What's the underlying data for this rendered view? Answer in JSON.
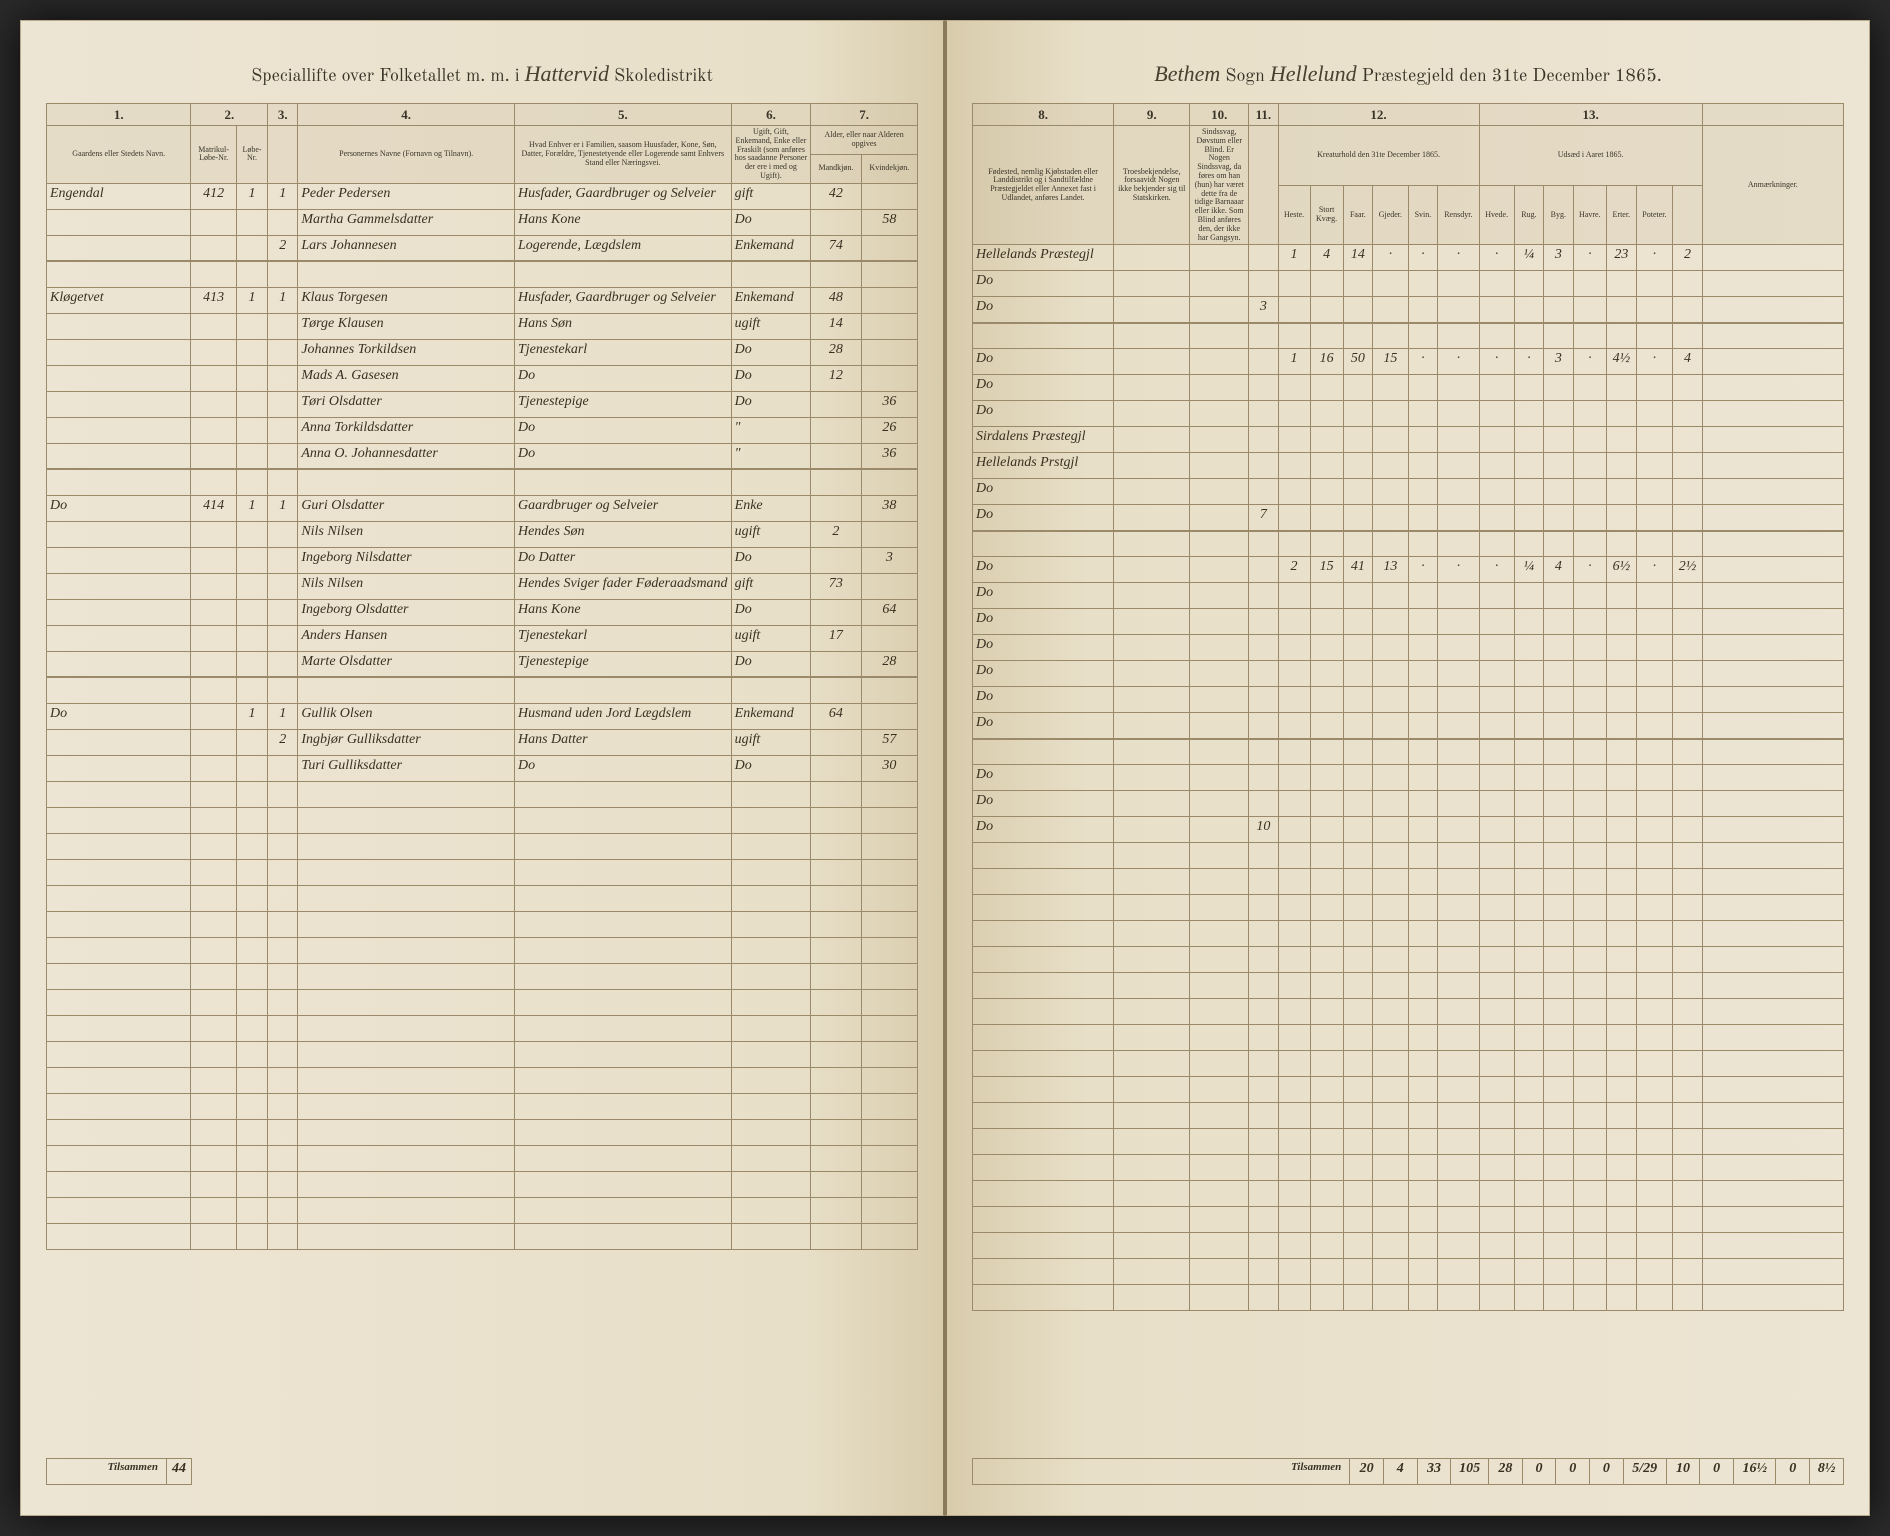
{
  "header": {
    "left_printed_prefix": "Speciallifte over Folketallet m. m. i",
    "left_handwritten": "Hattervid",
    "left_printed_suffix": "Skoledistrikt",
    "right_handwritten_sogn": "Bethem",
    "right_printed_sogn": "Sogn",
    "right_handwritten_gjeld": "Hellelund",
    "right_printed_suffix": "Præstegjeld den 31te December 1865."
  },
  "columns_left": {
    "c1": "1.",
    "c2": "2.",
    "c3": "3.",
    "c4": "4.",
    "c5": "5.",
    "c6": "6.",
    "c7": "7.",
    "h1": "Gaardens eller Stedets Navn.",
    "h2a": "Matrikul-Løbe-Nr.",
    "h2b": "Løbe-Nr.",
    "h3": "",
    "h4": "Personernes Navne (Fornavn og Tilnavn).",
    "h5": "Hvad Enhver er i Familien, saasom Huusfader, Kone, Søn, Datter, Forældre, Tjenestetyende eller Logerende samt Enhvers Stand eller Næringsvei.",
    "h6": "Ugift, Gift, Enkemand, Enke eller Fraskilt (som anføres hos saadanne Personer der ere i med og Ugift).",
    "h7": "Alder, eller naar Alderen opgives",
    "h7a": "Mandkjøn.",
    "h7b": "Kvindekjøn."
  },
  "columns_right": {
    "c8": "8.",
    "c9": "9.",
    "c10": "10.",
    "c11": "11.",
    "c12": "12.",
    "c13": "13.",
    "h8": "Fødested, nemlig Kjøbstaden eller Landdistrikt og i Sandtilfældne Præstegjeldet eller Annexet fast i Udlandet, anføres Landet.",
    "h9": "Troesbekjendelse, forsaavidt Nogen ikke bekjender sig til Statskirken.",
    "h10": "Sindssvag, Døvstum eller Blind. Er Nogen Sindssvag, da føres om han (hun) har været dette fra de tidige Barnaaar eller ikke. Som Blind anføres den, der ikke har Gangsyn.",
    "h11": "",
    "h12": "Kreaturhold den 31te December 1865.",
    "h12a": "Heste.",
    "h12b": "Stort Kvæg.",
    "h12c": "Faar.",
    "h12d": "Gjeder.",
    "h12e": "Svin.",
    "h12f": "Rensdyr.",
    "h13": "Udsæd i Aaret 1865.",
    "h13a": "Hvede.",
    "h13b": "Rug.",
    "h13c": "Byg.",
    "h13d": "Havre.",
    "h13e": "Erter.",
    "h13f": "Poteter.",
    "h14": "Anmærkninger."
  },
  "rows": [
    {
      "place": "Engendal",
      "matr": "412",
      "hus": "1",
      "pers": "1",
      "name": "Peder Pedersen",
      "role": "Husfader, Gaardbruger og Selveier",
      "status": "gift",
      "age_m": "42",
      "age_f": "",
      "birthplace": "Hellelands Præstegjl",
      "c11": "",
      "k": [
        "1",
        "4",
        "14",
        "·",
        "·",
        "·"
      ],
      "u": [
        "·",
        "¼",
        "3",
        "·",
        "23",
        "·",
        "2"
      ]
    },
    {
      "place": "",
      "matr": "",
      "hus": "",
      "pers": "",
      "name": "Martha Gammelsdatter",
      "role": "Hans Kone",
      "status": "Do",
      "age_m": "",
      "age_f": "58",
      "birthplace": "Do",
      "c11": "",
      "k": [
        "",
        "",
        "",
        "",
        "",
        ""
      ],
      "u": [
        "",
        "",
        "",
        "",
        "",
        "",
        ""
      ]
    },
    {
      "place": "",
      "matr": "",
      "hus": "",
      "pers": "2",
      "name": "Lars Johannesen",
      "role": "Logerende, Lægdslem",
      "status": "Enkemand",
      "age_m": "74",
      "age_f": "",
      "birthplace": "Do",
      "c11": "3",
      "k": [
        "",
        "",
        "",
        "",
        "",
        ""
      ],
      "u": [
        "",
        "",
        "",
        "",
        "",
        "",
        ""
      ]
    },
    {
      "gap": true
    },
    {
      "place": "Kløgetvet",
      "matr": "413",
      "hus": "1",
      "pers": "1",
      "name": "Klaus Torgesen",
      "role": "Husfader, Gaardbruger og Selveier",
      "status": "Enkemand",
      "age_m": "48",
      "age_f": "",
      "birthplace": "Do",
      "c11": "",
      "k": [
        "1",
        "16",
        "50",
        "15",
        "·",
        "·"
      ],
      "u": [
        "·",
        "·",
        "3",
        "·",
        "4½",
        "·",
        "4"
      ]
    },
    {
      "place": "",
      "matr": "",
      "hus": "",
      "pers": "",
      "name": "Tørge Klausen",
      "role": "Hans Søn",
      "status": "ugift",
      "age_m": "14",
      "age_f": "",
      "birthplace": "Do",
      "c11": "",
      "k": [
        "",
        "",
        "",
        "",
        "",
        ""
      ],
      "u": [
        "",
        "",
        "",
        "",
        "",
        "",
        ""
      ]
    },
    {
      "place": "",
      "matr": "",
      "hus": "",
      "pers": "",
      "name": "Johannes Torkildsen",
      "role": "Tjenestekarl",
      "status": "Do",
      "age_m": "28",
      "age_f": "",
      "birthplace": "Do",
      "c11": "",
      "k": [
        "",
        "",
        "",
        "",
        "",
        ""
      ],
      "u": [
        "",
        "",
        "",
        "",
        "",
        "",
        ""
      ]
    },
    {
      "place": "",
      "matr": "",
      "hus": "",
      "pers": "",
      "name": "Mads A. Gasesen",
      "role": "Do",
      "status": "Do",
      "age_m": "12",
      "age_f": "",
      "birthplace": "Sirdalens Præstegjl",
      "c11": "",
      "k": [
        "",
        "",
        "",
        "",
        "",
        ""
      ],
      "u": [
        "",
        "",
        "",
        "",
        "",
        "",
        ""
      ]
    },
    {
      "place": "",
      "matr": "",
      "hus": "",
      "pers": "",
      "name": "Tøri Olsdatter",
      "role": "Tjenestepige",
      "status": "Do",
      "age_m": "",
      "age_f": "36",
      "birthplace": "Hellelands Prstgjl",
      "c11": "",
      "k": [
        "",
        "",
        "",
        "",
        "",
        ""
      ],
      "u": [
        "",
        "",
        "",
        "",
        "",
        "",
        ""
      ]
    },
    {
      "place": "",
      "matr": "",
      "hus": "",
      "pers": "",
      "name": "Anna Torkildsdatter",
      "role": "Do",
      "status": "\"",
      "age_m": "",
      "age_f": "26",
      "birthplace": "Do",
      "c11": "",
      "k": [
        "",
        "",
        "",
        "",
        "",
        ""
      ],
      "u": [
        "",
        "",
        "",
        "",
        "",
        "",
        ""
      ]
    },
    {
      "place": "",
      "matr": "",
      "hus": "",
      "pers": "",
      "name": "Anna O. Johannesdatter",
      "role": "Do",
      "status": "\"",
      "age_m": "",
      "age_f": "36",
      "birthplace": "Do",
      "c11": "7",
      "k": [
        "",
        "",
        "",
        "",
        "",
        ""
      ],
      "u": [
        "",
        "",
        "",
        "",
        "",
        "",
        ""
      ]
    },
    {
      "gap": true
    },
    {
      "place": "Do",
      "matr": "414",
      "hus": "1",
      "pers": "1",
      "name": "Guri Olsdatter",
      "role": "Gaardbruger og Selveier",
      "status": "Enke",
      "age_m": "",
      "age_f": "38",
      "birthplace": "Do",
      "c11": "",
      "k": [
        "2",
        "15",
        "41",
        "13",
        "·",
        "·"
      ],
      "u": [
        "·",
        "¼",
        "4",
        "·",
        "6½",
        "·",
        "2½"
      ]
    },
    {
      "place": "",
      "matr": "",
      "hus": "",
      "pers": "",
      "name": "Nils Nilsen",
      "role": "Hendes Søn",
      "status": "ugift",
      "age_m": "2",
      "age_f": "",
      "birthplace": "Do",
      "c11": "",
      "k": [
        "",
        "",
        "",
        "",
        "",
        ""
      ],
      "u": [
        "",
        "",
        "",
        "",
        "",
        "",
        ""
      ]
    },
    {
      "place": "",
      "matr": "",
      "hus": "",
      "pers": "",
      "name": "Ingeborg Nilsdatter",
      "role": "Do    Datter",
      "status": "Do",
      "age_m": "",
      "age_f": "3",
      "birthplace": "Do",
      "c11": "",
      "k": [
        "",
        "",
        "",
        "",
        "",
        ""
      ],
      "u": [
        "",
        "",
        "",
        "",
        "",
        "",
        ""
      ]
    },
    {
      "place": "",
      "matr": "",
      "hus": "",
      "pers": "",
      "name": "Nils Nilsen",
      "role": "Hendes Sviger fader Føderaadsmand",
      "status": "gift",
      "age_m": "73",
      "age_f": "",
      "birthplace": "Do",
      "c11": "",
      "k": [
        "",
        "",
        "",
        "",
        "",
        ""
      ],
      "u": [
        "",
        "",
        "",
        "",
        "",
        "",
        ""
      ]
    },
    {
      "place": "",
      "matr": "",
      "hus": "",
      "pers": "",
      "name": "Ingeborg Olsdatter",
      "role": "Hans Kone",
      "status": "Do",
      "age_m": "",
      "age_f": "64",
      "birthplace": "Do",
      "c11": "",
      "k": [
        "",
        "",
        "",
        "",
        "",
        ""
      ],
      "u": [
        "",
        "",
        "",
        "",
        "",
        "",
        ""
      ]
    },
    {
      "place": "",
      "matr": "",
      "hus": "",
      "pers": "",
      "name": "Anders Hansen",
      "role": "Tjenestekarl",
      "status": "ugift",
      "age_m": "17",
      "age_f": "",
      "birthplace": "Do",
      "c11": "",
      "k": [
        "",
        "",
        "",
        "",
        "",
        ""
      ],
      "u": [
        "",
        "",
        "",
        "",
        "",
        "",
        ""
      ]
    },
    {
      "place": "",
      "matr": "",
      "hus": "",
      "pers": "",
      "name": "Marte Olsdatter",
      "role": "Tjenestepige",
      "status": "Do",
      "age_m": "",
      "age_f": "28",
      "birthplace": "Do",
      "c11": "",
      "k": [
        "",
        "",
        "",
        "",
        "",
        ""
      ],
      "u": [
        "",
        "",
        "",
        "",
        "",
        "",
        ""
      ]
    },
    {
      "gap": true
    },
    {
      "place": "Do",
      "matr": "",
      "hus": "1",
      "pers": "1",
      "name": "Gullik Olsen",
      "role": "Husmand uden Jord Lægdslem",
      "status": "Enkemand",
      "age_m": "64",
      "age_f": "",
      "birthplace": "Do",
      "c11": "",
      "k": [
        "",
        "",
        "",
        "",
        "",
        ""
      ],
      "u": [
        "",
        "",
        "",
        "",
        "",
        "",
        ""
      ]
    },
    {
      "place": "",
      "matr": "",
      "hus": "",
      "pers": "2",
      "name": "Ingbjør Gulliksdatter",
      "role": "Hans Datter",
      "status": "ugift",
      "age_m": "",
      "age_f": "57",
      "birthplace": "Do",
      "c11": "",
      "k": [
        "",
        "",
        "",
        "",
        "",
        ""
      ],
      "u": [
        "",
        "",
        "",
        "",
        "",
        "",
        ""
      ]
    },
    {
      "place": "",
      "matr": "",
      "hus": "",
      "pers": "",
      "name": "Turi Gulliksdatter",
      "role": "Do",
      "status": "Do",
      "age_m": "",
      "age_f": "30",
      "birthplace": "Do",
      "c11": "10",
      "k": [
        "",
        "",
        "",
        "",
        "",
        ""
      ],
      "u": [
        "",
        "",
        "",
        "",
        "",
        "",
        ""
      ]
    }
  ],
  "totals": {
    "left_label": "Tilsammen",
    "left_value": "44",
    "right_label": "Tilsammen",
    "values": [
      "20",
      "4",
      "33",
      "105",
      "28",
      "0",
      "0",
      "0",
      "5/29",
      "10",
      "0",
      "16½",
      "0",
      "8½"
    ]
  },
  "colors": {
    "paper": "#ede5d4",
    "ink": "#3a3428",
    "rule": "#9a8a6a"
  },
  "empty_rows_count": 18
}
